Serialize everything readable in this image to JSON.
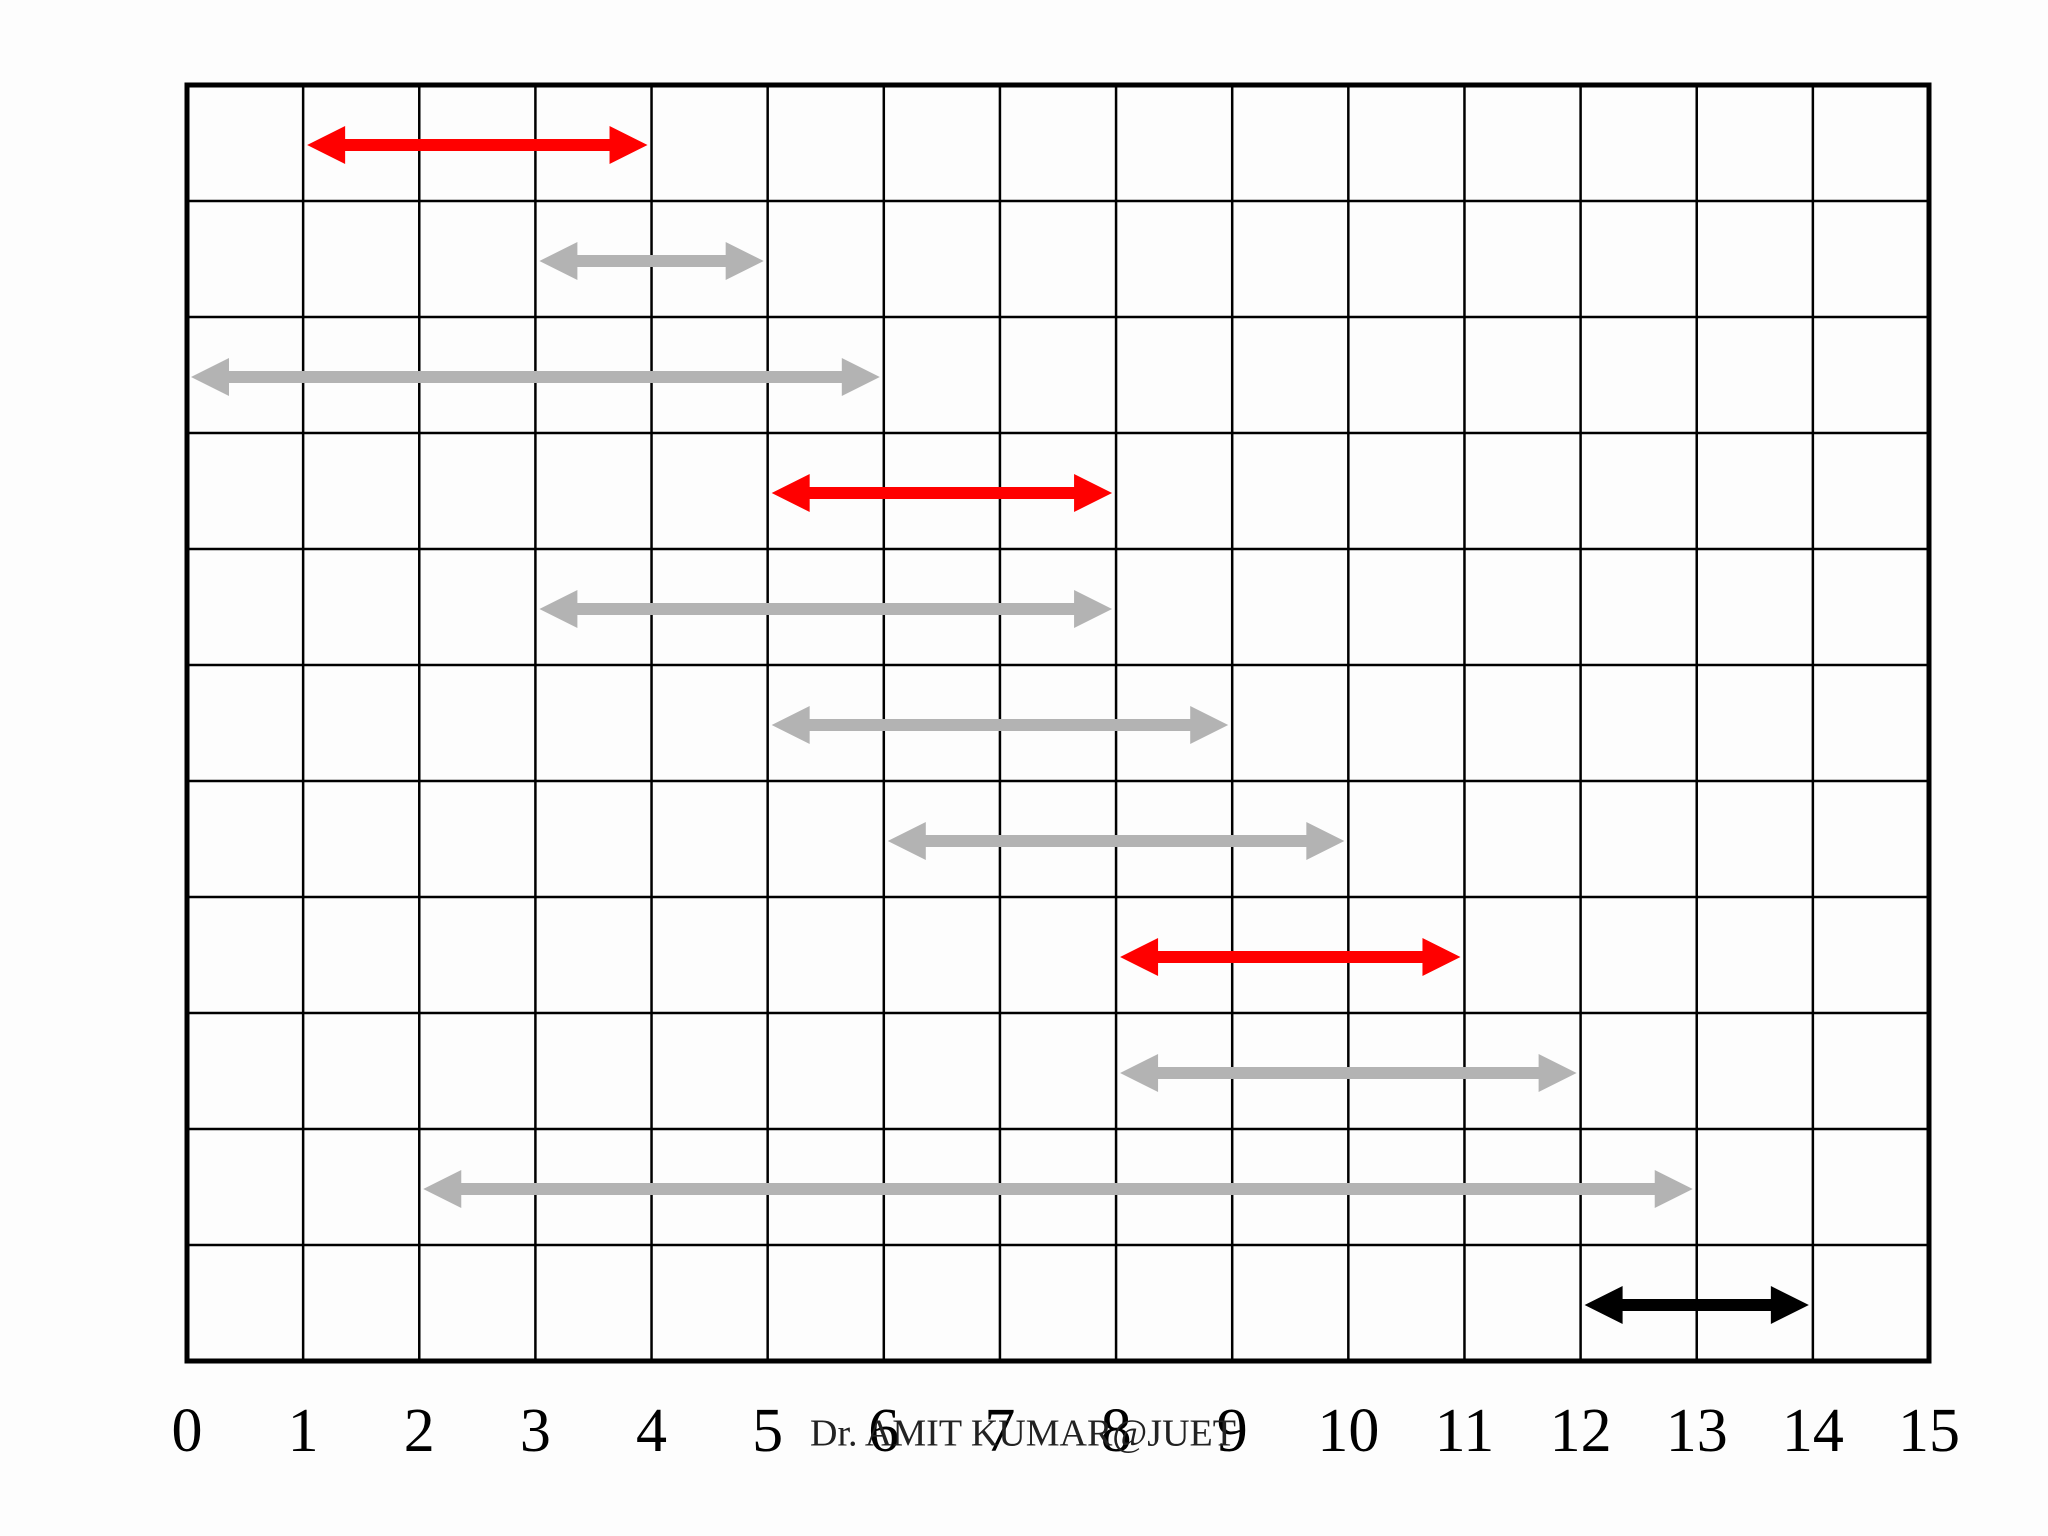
{
  "chart_data": {
    "type": "interval",
    "annotation": "Dr. AMIT KUMAR@JUET",
    "xlim": [
      0,
      15
    ],
    "xticks": [
      0,
      1,
      2,
      3,
      4,
      5,
      6,
      7,
      8,
      9,
      10,
      11,
      12,
      13,
      14,
      15
    ],
    "grid": true,
    "intervals": [
      {
        "start": 1,
        "end": 4,
        "color": "#ff0000"
      },
      {
        "start": 3,
        "end": 5,
        "color": "#b3b3b3"
      },
      {
        "start": 0,
        "end": 6,
        "color": "#b3b3b3"
      },
      {
        "start": 5,
        "end": 8,
        "color": "#ff0000"
      },
      {
        "start": 3,
        "end": 8,
        "color": "#b3b3b3"
      },
      {
        "start": 5,
        "end": 9,
        "color": "#b3b3b3"
      },
      {
        "start": 6,
        "end": 10,
        "color": "#b3b3b3"
      },
      {
        "start": 8,
        "end": 11,
        "color": "#ff0000"
      },
      {
        "start": 8,
        "end": 12,
        "color": "#b3b3b3"
      },
      {
        "start": 2,
        "end": 13,
        "color": "#b3b3b3"
      },
      {
        "start": 12,
        "end": 14,
        "color": "#000000"
      }
    ]
  }
}
